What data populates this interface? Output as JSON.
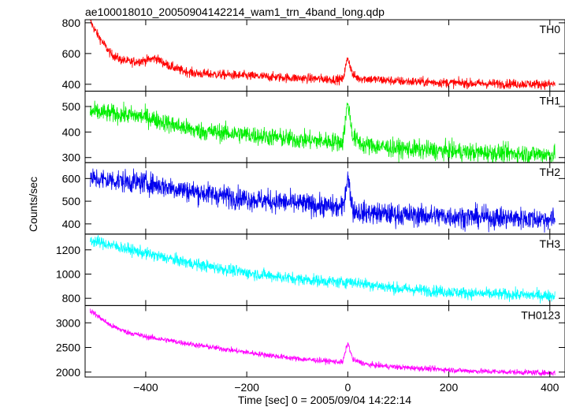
{
  "chart_data": {
    "type": "line",
    "title": "ae100018010_20050904142214_wam1_trn_4band_long.qdp",
    "xlabel": "Time [sec] 0 = 2005/09/04 14:22:14",
    "ylabel": "Counts/sec",
    "xlim": [
      -520,
      430
    ],
    "xticks": [
      -400,
      -200,
      0,
      200,
      400
    ],
    "xtick_labels": [
      "−400",
      "−200",
      "0",
      "200",
      "400"
    ],
    "panels": [
      {
        "name": "TH0",
        "color": "#ff0000",
        "ylim": [
          355,
          820
        ],
        "yticks": [
          400,
          600,
          800
        ],
        "knots": [
          [
            -510,
            810
          ],
          [
            -495,
            720
          ],
          [
            -470,
            600
          ],
          [
            -450,
            560
          ],
          [
            -430,
            545
          ],
          [
            -400,
            555
          ],
          [
            -380,
            570
          ],
          [
            -360,
            530
          ],
          [
            -330,
            490
          ],
          [
            -300,
            470
          ],
          [
            -200,
            455
          ],
          [
            -100,
            440
          ],
          [
            -10,
            430
          ],
          [
            0,
            575
          ],
          [
            10,
            460
          ],
          [
            20,
            440
          ],
          [
            100,
            420
          ],
          [
            250,
            405
          ],
          [
            410,
            400
          ]
        ],
        "noise": 22
      },
      {
        "name": "TH1",
        "color": "#00ee00",
        "ylim": [
          280,
          560
        ],
        "yticks": [
          300,
          400,
          500
        ],
        "knots": [
          [
            -510,
            480
          ],
          [
            -400,
            460
          ],
          [
            -350,
            430
          ],
          [
            -300,
            405
          ],
          [
            -200,
            390
          ],
          [
            -100,
            370
          ],
          [
            -10,
            360
          ],
          [
            0,
            520
          ],
          [
            10,
            380
          ],
          [
            30,
            350
          ],
          [
            100,
            335
          ],
          [
            250,
            320
          ],
          [
            410,
            312
          ]
        ],
        "noise": 26
      },
      {
        "name": "TH2",
        "color": "#0000ee",
        "ylim": [
          355,
          670
        ],
        "yticks": [
          400,
          500,
          600
        ],
        "knots": [
          [
            -510,
            600
          ],
          [
            -400,
            580
          ],
          [
            -300,
            540
          ],
          [
            -200,
            510
          ],
          [
            -100,
            490
          ],
          [
            -10,
            470
          ],
          [
            0,
            610
          ],
          [
            10,
            460
          ],
          [
            30,
            450
          ],
          [
            100,
            440
          ],
          [
            250,
            430
          ],
          [
            410,
            420
          ]
        ],
        "noise": 35
      },
      {
        "name": "TH3",
        "color": "#00ffff",
        "ylim": [
          740,
          1330
        ],
        "yticks": [
          800,
          1000,
          1200
        ],
        "knots": [
          [
            -510,
            1280
          ],
          [
            -400,
            1170
          ],
          [
            -300,
            1080
          ],
          [
            -200,
            1010
          ],
          [
            -100,
            960
          ],
          [
            -10,
            930
          ],
          [
            0,
            940
          ],
          [
            100,
            880
          ],
          [
            250,
            840
          ],
          [
            410,
            820
          ]
        ],
        "noise": 35
      },
      {
        "name": "TH0123",
        "color": "#ff00ff",
        "ylim": [
          1900,
          3350
        ],
        "yticks": [
          2000,
          2500,
          3000
        ],
        "knots": [
          [
            -510,
            3250
          ],
          [
            -470,
            2950
          ],
          [
            -440,
            2820
          ],
          [
            -400,
            2720
          ],
          [
            -300,
            2550
          ],
          [
            -200,
            2400
          ],
          [
            -100,
            2270
          ],
          [
            -10,
            2200
          ],
          [
            0,
            2600
          ],
          [
            10,
            2250
          ],
          [
            40,
            2150
          ],
          [
            100,
            2100
          ],
          [
            250,
            2020
          ],
          [
            410,
            1980
          ]
        ],
        "noise": 40
      }
    ]
  }
}
